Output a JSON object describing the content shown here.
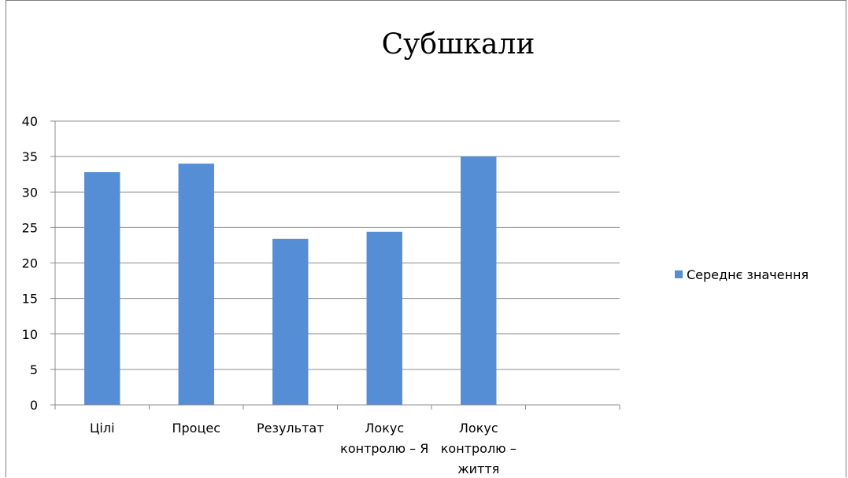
{
  "chart_data": {
    "type": "bar",
    "title": "Субшкали",
    "categories": [
      [
        "Цілі"
      ],
      [
        "Процес"
      ],
      [
        "Результат"
      ],
      [
        "Локус",
        "контролю –  Я"
      ],
      [
        "Локус",
        "контролю –",
        "життя"
      ],
      [
        ""
      ]
    ],
    "series": [
      {
        "name": "Середнє значення",
        "values": [
          32.8,
          34.0,
          23.4,
          24.4,
          35.0,
          null
        ],
        "color": "#558ed5"
      }
    ],
    "ylim": [
      0,
      40
    ],
    "yticks": [
      0,
      5,
      10,
      15,
      20,
      25,
      30,
      35,
      40
    ],
    "grid": true,
    "legend": "right"
  }
}
